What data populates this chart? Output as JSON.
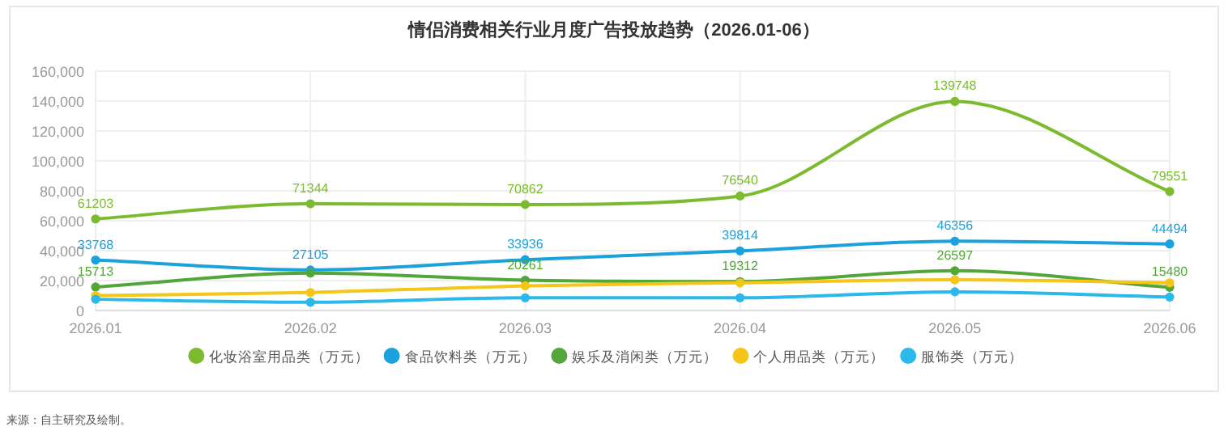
{
  "chart_data": {
    "type": "line",
    "title": "情侣消费相关行业月度广告投放趋势（2026.01-06）",
    "categories": [
      "2026.01",
      "2026.02",
      "2026.03",
      "2026.04",
      "2026.05",
      "2026.06"
    ],
    "series": [
      {
        "name": "化妆浴室用品类（万元）",
        "color": "#7cbb2f",
        "values": [
          61203,
          71344,
          70862,
          76540,
          139748,
          79551
        ],
        "value_labels": [
          "61203",
          "71344",
          "70862",
          "76540",
          "139748",
          "79551"
        ]
      },
      {
        "name": "食品饮料类（万元）",
        "color": "#1ba1dc",
        "values": [
          33768,
          27105,
          33936,
          39814,
          46356,
          44494
        ],
        "value_labels": [
          "33768",
          "27105",
          "33936",
          "39814",
          "46356",
          "44494"
        ]
      },
      {
        "name": "娱乐及消闲类（万元）",
        "color": "#52a63a",
        "values": [
          15713,
          25000,
          20261,
          19312,
          26597,
          15480
        ],
        "value_labels": [
          "15713",
          null,
          "20261",
          "19312",
          "26597",
          "15480"
        ]
      },
      {
        "name": "个人用品类（万元）",
        "color": "#f5c518",
        "values": [
          10000,
          12000,
          16500,
          18500,
          20500,
          18500
        ]
      },
      {
        "name": "服饰类（万元）",
        "color": "#2bb8ea",
        "values": [
          7500,
          5500,
          8500,
          8500,
          12500,
          9000
        ]
      }
    ],
    "ylim": [
      0,
      160000
    ],
    "yticks": [
      {
        "value": 0,
        "label": "0"
      },
      {
        "value": 20000,
        "label": "20,000"
      },
      {
        "value": 40000,
        "label": "40,000"
      },
      {
        "value": 60000,
        "label": "60,000"
      },
      {
        "value": 80000,
        "label": "80,000"
      },
      {
        "value": 100000,
        "label": "100,000"
      },
      {
        "value": 120000,
        "label": "120,000"
      },
      {
        "value": 140000,
        "label": "140,000"
      },
      {
        "value": 160000,
        "label": "160,000"
      }
    ],
    "grid": true,
    "legend": "bottom",
    "marker": "circle",
    "line_style": "solid",
    "annotations": [
      "来源：自主研究及绘制。"
    ]
  }
}
